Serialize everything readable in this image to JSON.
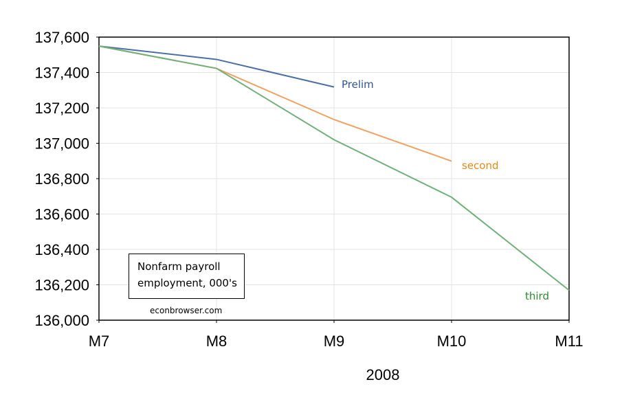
{
  "chart_data": {
    "type": "line",
    "categories": [
      "M7",
      "M8",
      "M9",
      "M10",
      "M11"
    ],
    "xlabel": "2008",
    "ylabel": "",
    "ylim": [
      136000,
      137600
    ],
    "yticks": [
      136000,
      136200,
      136400,
      136600,
      136800,
      137000,
      137200,
      137400,
      137600
    ],
    "ytick_labels": [
      "136,000",
      "136,200",
      "136,400",
      "136,600",
      "136,800",
      "137,000",
      "137,200",
      "137,400",
      "137,600"
    ],
    "grid": true,
    "series": [
      {
        "name": "Prelim",
        "color": "#4a6fa5",
        "label_color": "#2f5597",
        "values": [
          137549,
          137474,
          137318,
          null,
          null
        ]
      },
      {
        "name": "second",
        "color": "#f0a060",
        "label_color": "#e08a1e",
        "values": [
          137549,
          137423,
          137134,
          136899,
          null
        ]
      },
      {
        "name": "third",
        "color": "#70b07a",
        "label_color": "#2e8b2e",
        "values": [
          137549,
          137423,
          137020,
          136695,
          136169
        ]
      }
    ],
    "annotation_box": [
      "Nonfarm payroll",
      "employment, 000's"
    ],
    "source": "econbrowser.com"
  }
}
